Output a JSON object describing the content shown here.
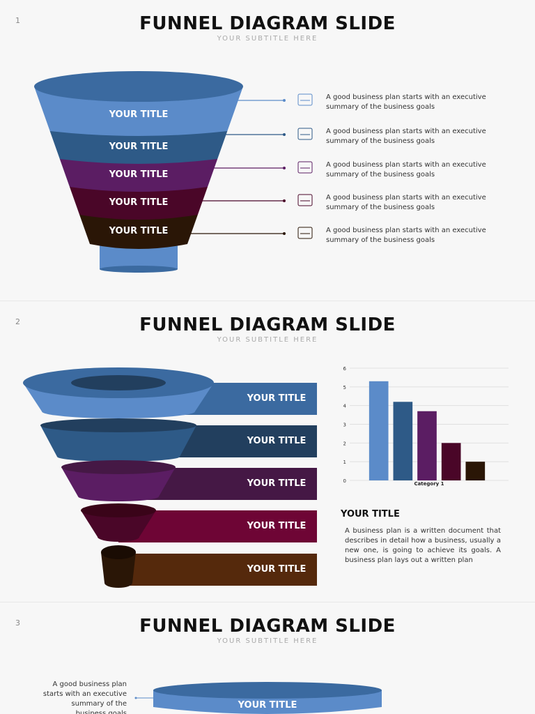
{
  "slides": [
    {
      "number": "1",
      "title": "FUNNEL DIAGRAM SLIDE",
      "subtitle": "YOUR SUBTITLE HERE",
      "funnel_labels": [
        "YOUR TITLE",
        "YOUR TITLE",
        "YOUR TITLE",
        "YOUR TITLE",
        "YOUR TITLE"
      ],
      "items": [
        "A good business plan starts with an executive summary of the business goals",
        "A good business plan starts with an executive summary of the business goals",
        "A good business plan starts with an executive summary of the business goals",
        "A good business plan starts with an executive summary of the business goals",
        "A good business plan starts with an executive summary of the business goals"
      ]
    },
    {
      "number": "2",
      "title": "FUNNEL DIAGRAM SLIDE",
      "subtitle": "YOUR SUBTITLE HERE",
      "funnel_labels": [
        "YOUR TITLE",
        "YOUR TITLE",
        "YOUR TITLE",
        "YOUR TITLE",
        "YOUR TITLE"
      ],
      "text_title": "YOUR TITLE",
      "text_body": "A business plan is a written document that describes in detail how a business, usually a new one, is going to achieve its goals. A business plan lays out a written plan"
    },
    {
      "number": "3",
      "title": "FUNNEL DIAGRAM SLIDE",
      "subtitle": "YOUR SUBTITLE HERE",
      "note": "A good business plan starts with an executive summary of the business goals",
      "funnel_labels": [
        "YOUR TITLE"
      ]
    }
  ],
  "chart_data": {
    "type": "bar",
    "categories": [
      "Category 1"
    ],
    "series": [
      {
        "color": "#5b8bc9",
        "values": [
          5.3
        ]
      },
      {
        "color": "#2e5a87",
        "values": [
          4.2
        ]
      },
      {
        "color": "#5b1d63",
        "values": [
          3.7
        ]
      },
      {
        "color": "#4a0628",
        "values": [
          2
        ]
      },
      {
        "color": "#2a1606",
        "values": [
          1
        ]
      }
    ],
    "ylim": [
      0,
      6
    ],
    "yticks": [
      0,
      1,
      2,
      3,
      4,
      5,
      6
    ],
    "grid": true
  }
}
